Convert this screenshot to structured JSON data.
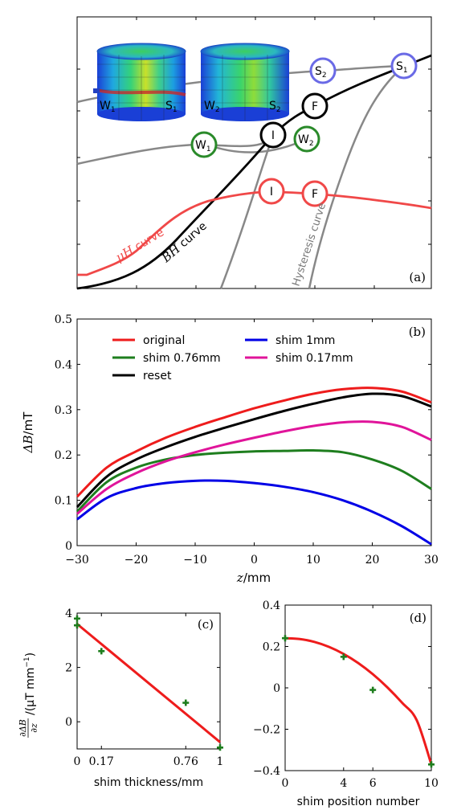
{
  "panel_a": {
    "label": "(a)",
    "curve_labels": {
      "uh_math": "μH",
      "uh_word": "curve",
      "bh_math": "BH",
      "bh_word": "curve",
      "hysteresis": "Hysteresis curve"
    },
    "points": {
      "s1": "S",
      "s1_sub": "1",
      "s2": "S",
      "s2_sub": "2",
      "f_black": "F",
      "i_black": "I",
      "w1": "W",
      "w1_sub": "1",
      "w2": "W",
      "w2_sub": "2",
      "i_red": "I",
      "f_red": "F"
    },
    "inset_labels": {
      "w1": "W",
      "w1_sub": "1",
      "s1": "S",
      "s1_sub": "1",
      "w2": "W",
      "w2_sub": "2",
      "s2": "S",
      "s2_sub": "2"
    },
    "colors": {
      "black": "#000000",
      "red": "#f04848",
      "gray": "#888888",
      "blue_circle": "#6a6ae6",
      "green_circle": "#2a8a2a"
    }
  },
  "chart_data": [
    {
      "id": "b",
      "type": "line",
      "panel_label": "(b)",
      "xlabel_math": "z",
      "xlabel_unit": "/mm",
      "ylabel_math": "ΔB",
      "ylabel_unit": "/mT",
      "xlim": [
        -30,
        30
      ],
      "ylim": [
        0,
        0.5
      ],
      "xticks": [
        -30,
        -20,
        -10,
        0,
        10,
        20,
        30
      ],
      "yticks": [
        0,
        0.1,
        0.2,
        0.3,
        0.4,
        0.5
      ],
      "ytick_labels": [
        "0",
        "0.1",
        "0.2",
        "0.3",
        "0.4",
        "0.5"
      ],
      "legend_position": "top",
      "grid": false,
      "x": [
        -30,
        -25,
        -20,
        -15,
        -10,
        -5,
        0,
        5,
        10,
        15,
        20,
        25,
        30
      ],
      "series": [
        {
          "name": "original",
          "color": "#ee1c1c",
          "values": [
            0.108,
            0.172,
            0.208,
            0.238,
            0.262,
            0.283,
            0.303,
            0.32,
            0.335,
            0.345,
            0.348,
            0.34,
            0.316
          ]
        },
        {
          "name": "shim 1mm",
          "color": "#0000e6",
          "values": [
            0.058,
            0.105,
            0.127,
            0.138,
            0.143,
            0.143,
            0.138,
            0.13,
            0.118,
            0.1,
            0.075,
            0.043,
            0.003
          ]
        },
        {
          "name": "shim 0.76mm",
          "color": "#1e7e1e",
          "values": [
            0.075,
            0.14,
            0.172,
            0.19,
            0.2,
            0.205,
            0.208,
            0.209,
            0.21,
            0.206,
            0.19,
            0.165,
            0.125
          ]
        },
        {
          "name": "shim 0.17mm",
          "color": "#e0149a",
          "values": [
            0.07,
            0.125,
            0.16,
            0.186,
            0.206,
            0.223,
            0.238,
            0.252,
            0.264,
            0.272,
            0.273,
            0.262,
            0.233
          ]
        },
        {
          "name": "reset",
          "color": "#000000",
          "values": [
            0.085,
            0.152,
            0.19,
            0.217,
            0.24,
            0.26,
            0.279,
            0.297,
            0.313,
            0.327,
            0.335,
            0.33,
            0.307
          ]
        }
      ]
    },
    {
      "id": "c",
      "type": "scatter",
      "panel_label": "(c)",
      "xlabel": "shim thickness/mm",
      "ylabel_num": "∂ΔB",
      "ylabel_den": "∂z",
      "ylabel_unit": "/(μT mm",
      "ylabel_exp": "−1",
      "ylabel_close": ")",
      "xlim": [
        0,
        1
      ],
      "ylim": [
        -1,
        4
      ],
      "xticks": [
        0,
        0.17,
        0.76,
        1
      ],
      "xtick_labels": [
        "0",
        "0.17",
        "0.76",
        "1"
      ],
      "yticks": [
        0,
        2,
        4
      ],
      "ytick_labels": [
        "0",
        "2",
        "4"
      ],
      "points": [
        {
          "x": 0,
          "y": 3.8
        },
        {
          "x": 0,
          "y": 3.55
        },
        {
          "x": 0.17,
          "y": 2.6
        },
        {
          "x": 0.76,
          "y": 0.7
        },
        {
          "x": 1,
          "y": -0.95
        }
      ],
      "fit": {
        "x": [
          0,
          1
        ],
        "y": [
          3.6,
          -0.75
        ]
      },
      "point_color": "#1e7e1e",
      "fit_color": "#ee1c1c"
    },
    {
      "id": "d",
      "type": "scatter",
      "panel_label": "(d)",
      "xlabel": "shim position number",
      "xlim": [
        0,
        10
      ],
      "ylim": [
        -0.4,
        0.4
      ],
      "xticks": [
        0,
        4,
        6,
        10
      ],
      "xtick_labels": [
        "0",
        "4",
        "6",
        "10"
      ],
      "yticks": [
        -0.4,
        -0.2,
        0,
        0.2,
        0.4
      ],
      "ytick_labels": [
        "−0.4",
        "−0.2",
        "0",
        "0.2",
        "0.4"
      ],
      "points": [
        {
          "x": 0,
          "y": 0.24
        },
        {
          "x": 4,
          "y": 0.15
        },
        {
          "x": 6,
          "y": -0.01
        },
        {
          "x": 10,
          "y": -0.37
        }
      ],
      "fit": {
        "x": [
          0,
          1,
          2,
          3,
          4,
          5,
          6,
          7,
          8,
          9,
          10
        ],
        "y": [
          0.24,
          0.236,
          0.222,
          0.198,
          0.164,
          0.12,
          0.066,
          0.002,
          -0.072,
          -0.156,
          -0.37
        ]
      },
      "point_color": "#1e7e1e",
      "fit_color": "#ee1c1c"
    }
  ]
}
